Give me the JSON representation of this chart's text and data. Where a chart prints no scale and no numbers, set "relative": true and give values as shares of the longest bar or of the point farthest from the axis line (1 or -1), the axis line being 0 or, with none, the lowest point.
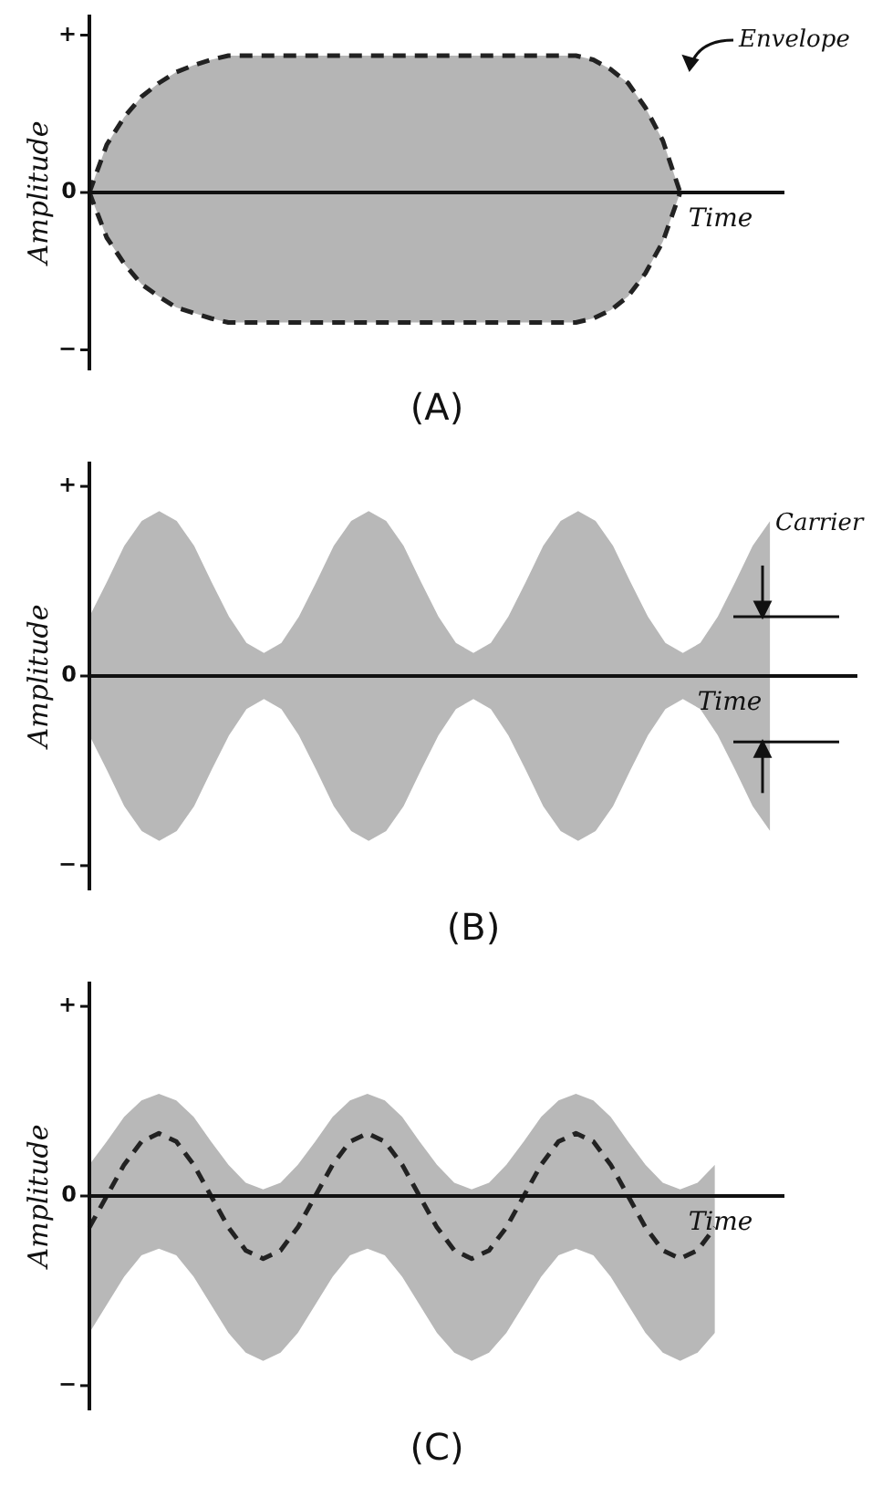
{
  "chart_data": [
    {
      "type": "area",
      "title": "(A)",
      "xlabel": "Time",
      "ylabel": "Amplitude",
      "relative": true,
      "annotations": [
        "+",
        "0",
        "−",
        "Envelope"
      ],
      "categories": [
        null,
        null,
        null,
        null,
        null,
        null,
        null,
        null,
        null,
        null,
        null,
        null,
        null,
        null,
        null,
        null,
        null,
        null,
        null,
        null,
        null,
        null,
        null,
        null,
        null,
        null,
        null,
        null,
        null,
        null,
        null,
        null,
        null,
        null,
        null,
        null,
        null,
        null,
        null,
        null,
        null
      ],
      "series": [
        {
          "type": "area",
          "color": "#222222",
          "line_style": "dashed",
          "values": [
            0,
            0.35,
            0.55,
            0.7,
            0.8,
            0.88,
            0.93,
            0.97,
            1,
            1,
            1,
            1,
            1,
            1,
            1,
            1,
            1,
            1,
            1,
            1,
            1,
            1,
            1,
            1,
            1,
            1,
            1,
            1,
            1,
            0.97,
            0.9,
            0.8,
            0.62,
            0.38,
            0,
            null,
            null,
            null,
            null,
            null,
            null
          ]
        },
        {
          "type": "area",
          "color": "#222222",
          "line_style": "dashed",
          "values": [
            0,
            -0.33,
            -0.52,
            -0.67,
            -0.76,
            -0.84,
            -0.88,
            -0.92,
            -0.95,
            -0.95,
            -0.95,
            -0.95,
            -0.95,
            -0.95,
            -0.95,
            -0.95,
            -0.95,
            -0.95,
            -0.95,
            -0.95,
            -0.95,
            -0.95,
            -0.95,
            -0.95,
            -0.95,
            -0.95,
            -0.95,
            -0.95,
            -0.95,
            -0.92,
            -0.86,
            -0.76,
            -0.59,
            -0.36,
            0,
            null,
            null,
            null,
            null,
            null,
            null
          ]
        }
      ]
    },
    {
      "type": "area",
      "title": "(B)",
      "xlabel": "Time",
      "ylabel": "Amplitude",
      "relative": true,
      "annotations": [
        "+",
        "0",
        "−",
        "Carrier"
      ],
      "categories": [
        null,
        null,
        null,
        null,
        null,
        null,
        null,
        null,
        null,
        null,
        null,
        null,
        null,
        null,
        null,
        null,
        null,
        null,
        null,
        null,
        null,
        null,
        null,
        null,
        null,
        null,
        null,
        null,
        null,
        null,
        null,
        null,
        null,
        null,
        null,
        null,
        null,
        null,
        null,
        null,
        null,
        null,
        null,
        null,
        null
      ],
      "series": [
        {
          "type": "area",
          "color": "#b8b8b8",
          "values": [
            0.36,
            0.57,
            0.79,
            0.94,
            1,
            0.94,
            0.79,
            0.57,
            0.36,
            0.2,
            0.14,
            0.2,
            0.36,
            0.57,
            0.79,
            0.94,
            1,
            0.94,
            0.79,
            0.57,
            0.36,
            0.2,
            0.14,
            0.2,
            0.36,
            0.57,
            0.79,
            0.94,
            1,
            0.94,
            0.79,
            0.57,
            0.36,
            0.2,
            0.14,
            0.2,
            0.36,
            0.57,
            0.79,
            0.94,
            null,
            null,
            null,
            null,
            null
          ]
        },
        {
          "type": "area",
          "color": "#b8b8b8",
          "values": [
            -0.36,
            -0.57,
            -0.79,
            -0.94,
            -1,
            -0.94,
            -0.79,
            -0.57,
            -0.36,
            -0.2,
            -0.14,
            -0.2,
            -0.36,
            -0.57,
            -0.79,
            -0.94,
            -1,
            -0.94,
            -0.79,
            -0.57,
            -0.36,
            -0.2,
            -0.14,
            -0.2,
            -0.36,
            -0.57,
            -0.79,
            -0.94,
            -1,
            -0.94,
            -0.79,
            -0.57,
            -0.36,
            -0.2,
            -0.14,
            -0.2,
            -0.36,
            -0.57,
            -0.79,
            -0.94,
            null,
            null,
            null,
            null,
            null
          ]
        }
      ]
    },
    {
      "type": "area",
      "title": "(C)",
      "xlabel": "Time",
      "ylabel": "Amplitude",
      "relative": true,
      "annotations": [
        "+",
        "0",
        "−"
      ],
      "categories": [
        null,
        null,
        null,
        null,
        null,
        null,
        null,
        null,
        null,
        null,
        null,
        null,
        null,
        null,
        null,
        null,
        null,
        null,
        null,
        null,
        null,
        null,
        null,
        null,
        null,
        null,
        null,
        null,
        null,
        null,
        null,
        null,
        null,
        null,
        null,
        null,
        null,
        null,
        null,
        null,
        null
      ],
      "series": [
        {
          "type": "area",
          "color": "#b8b8b8",
          "values": [
            0.19,
            0.33,
            0.48,
            0.58,
            0.62,
            0.58,
            0.48,
            0.33,
            0.19,
            0.08,
            0.04,
            0.08,
            0.19,
            0.33,
            0.48,
            0.58,
            0.62,
            0.58,
            0.48,
            0.33,
            0.19,
            0.08,
            0.04,
            0.08,
            0.19,
            0.33,
            0.48,
            0.58,
            0.62,
            0.58,
            0.48,
            0.33,
            0.19,
            0.08,
            0.04,
            0.08,
            0.19,
            null,
            null,
            null,
            null
          ]
        },
        {
          "type": "area",
          "color": "#b8b8b8",
          "values": [
            -0.83,
            -0.66,
            -0.49,
            -0.36,
            -0.32,
            -0.36,
            -0.49,
            -0.66,
            -0.83,
            -0.95,
            -1,
            -0.95,
            -0.83,
            -0.66,
            -0.49,
            -0.36,
            -0.32,
            -0.36,
            -0.49,
            -0.66,
            -0.83,
            -0.95,
            -1,
            -0.95,
            -0.83,
            -0.66,
            -0.49,
            -0.36,
            -0.32,
            -0.36,
            -0.49,
            -0.66,
            -0.83,
            -0.95,
            -1,
            -0.95,
            -0.83,
            null,
            null,
            null,
            null
          ]
        },
        {
          "type": "line",
          "color": "#222222",
          "line_style": "dashed",
          "values": [
            -0.19,
            0,
            0.19,
            0.33,
            0.38,
            0.33,
            0.19,
            0,
            -0.19,
            -0.33,
            -0.38,
            -0.33,
            -0.19,
            0,
            0.19,
            0.33,
            0.38,
            0.33,
            0.19,
            0,
            -0.19,
            -0.33,
            -0.38,
            -0.33,
            -0.19,
            0,
            0.19,
            0.33,
            0.38,
            0.33,
            0.19,
            0,
            -0.19,
            -0.33,
            -0.38,
            -0.33,
            -0.19,
            null,
            null,
            null,
            null
          ]
        }
      ]
    }
  ]
}
